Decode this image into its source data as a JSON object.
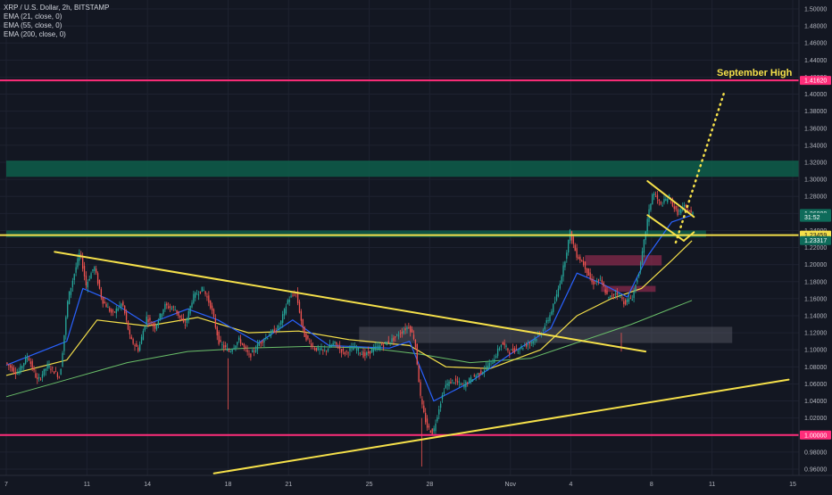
{
  "window": {
    "symbol": "XRP / U.S. Dollar, 2h, BITSTAMP"
  },
  "indicators": [
    {
      "label": "EMA (21, close, 0)",
      "color": "#2962ff"
    },
    {
      "label": "EMA (55, close, 0)",
      "color": "#f5e04a"
    },
    {
      "label": "EMA (200, close, 0)",
      "color": "#6abf69"
    }
  ],
  "annotations": {
    "september_high": "September High"
  },
  "colors": {
    "background": "#131722",
    "pink_line": "#ff2d7a",
    "trend_line": "#f5e04a",
    "green_zone": "#0e5e4a",
    "up_candle": "#26a69a",
    "down_candle": "#ef5350",
    "gray_zone": "#5d606b",
    "red_zone": "#b0305a"
  },
  "chart_data": {
    "type": "candlestick",
    "ylim": [
      0.955,
      1.505
    ],
    "y_ticks": [
      "1.50000",
      "1.48000",
      "1.46000",
      "1.44000",
      "1.42000",
      "1.40000",
      "1.38000",
      "1.36000",
      "1.34000",
      "1.32000",
      "1.30000",
      "1.28000",
      "1.26000",
      "1.24000",
      "1.22000",
      "1.20000",
      "1.18000",
      "1.16000",
      "1.14000",
      "1.12000",
      "1.10000",
      "1.08000",
      "1.06000",
      "1.04000",
      "1.02000",
      "1.00000",
      "0.98000",
      "0.96000"
    ],
    "x_ticks": [
      "7",
      "11",
      "14",
      "18",
      "21",
      "25",
      "28",
      "Nov",
      "4",
      "8",
      "11",
      "15"
    ],
    "x_tick_days": [
      0,
      4,
      7,
      11,
      14,
      18,
      21,
      25,
      28,
      32,
      35,
      39
    ],
    "xlim_days": [
      0,
      40
    ],
    "last_data_day": 34,
    "price_labels": [
      {
        "value": "1.41620",
        "price": 1.4162,
        "style": "pink"
      },
      {
        "value": "1.26000",
        "price": 1.26,
        "style": "teal"
      },
      {
        "value": "31:52",
        "price": 1.2555,
        "style": "teal"
      },
      {
        "value": "1.23459",
        "price": 1.23459,
        "style": "yellow"
      },
      {
        "value": "1.23317",
        "price": 1.22817,
        "style": "teal"
      },
      {
        "value": "1.00000",
        "price": 1.0,
        "style": "pink"
      }
    ],
    "horizontal_lines": [
      {
        "price": 1.4162,
        "color": "pink"
      },
      {
        "price": 1.0,
        "color": "pink"
      },
      {
        "price": 1.23459,
        "color": "yellow"
      }
    ],
    "zones": [
      {
        "kind": "green",
        "day_from": 0,
        "day_to": 40,
        "price_from": 1.303,
        "price_to": 1.322
      },
      {
        "kind": "green",
        "day_from": 0,
        "day_to": 34.7,
        "price_from": 1.232,
        "price_to": 1.24
      },
      {
        "kind": "gray",
        "day_from": 17.5,
        "day_to": 36,
        "price_from": 1.108,
        "price_to": 1.127
      },
      {
        "kind": "red",
        "day_from": 28.7,
        "day_to": 32.5,
        "price_from": 1.199,
        "price_to": 1.211
      },
      {
        "kind": "red",
        "day_from": 29.5,
        "day_to": 32.2,
        "price_from": 1.168,
        "price_to": 1.175
      }
    ],
    "trend_lines": [
      {
        "from": [
          2.4,
          1.215
        ],
        "to": [
          31.7,
          1.098
        ],
        "dotted": false
      },
      {
        "from": [
          10.3,
          0.955
        ],
        "to": [
          38.8,
          1.065
        ],
        "dotted": false
      },
      {
        "from": [
          31.8,
          1.298
        ],
        "to": [
          34.1,
          1.256
        ],
        "dotted": false
      },
      {
        "from": [
          31.8,
          1.258
        ],
        "to": [
          33.6,
          1.228
        ],
        "dotted": false
      },
      {
        "from": [
          33.6,
          1.228
        ],
        "to": [
          34.1,
          1.238
        ],
        "dotted": false
      },
      {
        "from": [
          33.2,
          1.226
        ],
        "to": [
          35.6,
          1.402
        ],
        "dotted": true
      }
    ],
    "key_points": [
      {
        "day": 0.0,
        "price": 1.085
      },
      {
        "day": 0.6,
        "price": 1.072
      },
      {
        "day": 1.1,
        "price": 1.093
      },
      {
        "day": 1.6,
        "price": 1.063
      },
      {
        "day": 2.1,
        "price": 1.082
      },
      {
        "day": 2.7,
        "price": 1.068
      },
      {
        "day": 3.1,
        "price": 1.16
      },
      {
        "day": 3.4,
        "price": 1.188
      },
      {
        "day": 3.7,
        "price": 1.215
      },
      {
        "day": 4.0,
        "price": 1.176
      },
      {
        "day": 4.4,
        "price": 1.198
      },
      {
        "day": 4.8,
        "price": 1.158
      },
      {
        "day": 5.3,
        "price": 1.142
      },
      {
        "day": 5.8,
        "price": 1.155
      },
      {
        "day": 6.2,
        "price": 1.112
      },
      {
        "day": 6.6,
        "price": 1.1
      },
      {
        "day": 7.0,
        "price": 1.138
      },
      {
        "day": 7.4,
        "price": 1.126
      },
      {
        "day": 7.9,
        "price": 1.152
      },
      {
        "day": 8.4,
        "price": 1.148
      },
      {
        "day": 8.9,
        "price": 1.128
      },
      {
        "day": 9.3,
        "price": 1.162
      },
      {
        "day": 9.8,
        "price": 1.172
      },
      {
        "day": 10.2,
        "price": 1.15
      },
      {
        "day": 10.6,
        "price": 1.108
      },
      {
        "day": 11.1,
        "price": 1.098
      },
      {
        "day": 11.6,
        "price": 1.112
      },
      {
        "day": 12.1,
        "price": 1.092
      },
      {
        "day": 12.6,
        "price": 1.108
      },
      {
        "day": 13.1,
        "price": 1.118
      },
      {
        "day": 13.6,
        "price": 1.128
      },
      {
        "day": 14.0,
        "price": 1.158
      },
      {
        "day": 14.4,
        "price": 1.168
      },
      {
        "day": 14.8,
        "price": 1.118
      },
      {
        "day": 15.3,
        "price": 1.102
      },
      {
        "day": 15.8,
        "price": 1.098
      },
      {
        "day": 16.3,
        "price": 1.108
      },
      {
        "day": 16.8,
        "price": 1.096
      },
      {
        "day": 17.3,
        "price": 1.103
      },
      {
        "day": 17.8,
        "price": 1.093
      },
      {
        "day": 18.2,
        "price": 1.1
      },
      {
        "day": 18.7,
        "price": 1.106
      },
      {
        "day": 19.2,
        "price": 1.112
      },
      {
        "day": 19.6,
        "price": 1.12
      },
      {
        "day": 20.0,
        "price": 1.128
      },
      {
        "day": 20.3,
        "price": 1.112
      },
      {
        "day": 20.6,
        "price": 1.04
      },
      {
        "day": 20.9,
        "price": 1.01
      },
      {
        "day": 21.2,
        "price": 1.002
      },
      {
        "day": 21.5,
        "price": 1.032
      },
      {
        "day": 21.8,
        "price": 1.058
      },
      {
        "day": 22.2,
        "price": 1.064
      },
      {
        "day": 22.7,
        "price": 1.058
      },
      {
        "day": 23.2,
        "price": 1.068
      },
      {
        "day": 23.7,
        "price": 1.076
      },
      {
        "day": 24.2,
        "price": 1.088
      },
      {
        "day": 24.6,
        "price": 1.108
      },
      {
        "day": 25.0,
        "price": 1.098
      },
      {
        "day": 25.5,
        "price": 1.102
      },
      {
        "day": 26.0,
        "price": 1.108
      },
      {
        "day": 26.5,
        "price": 1.118
      },
      {
        "day": 26.9,
        "price": 1.135
      },
      {
        "day": 27.3,
        "price": 1.16
      },
      {
        "day": 27.7,
        "price": 1.2
      },
      {
        "day": 28.0,
        "price": 1.238
      },
      {
        "day": 28.3,
        "price": 1.212
      },
      {
        "day": 28.7,
        "price": 1.2
      },
      {
        "day": 29.1,
        "price": 1.178
      },
      {
        "day": 29.5,
        "price": 1.182
      },
      {
        "day": 29.9,
        "price": 1.16
      },
      {
        "day": 30.3,
        "price": 1.168
      },
      {
        "day": 30.7,
        "price": 1.155
      },
      {
        "day": 31.1,
        "price": 1.162
      },
      {
        "day": 31.5,
        "price": 1.2
      },
      {
        "day": 31.8,
        "price": 1.248
      },
      {
        "day": 32.1,
        "price": 1.285
      },
      {
        "day": 32.5,
        "price": 1.27
      },
      {
        "day": 32.9,
        "price": 1.28
      },
      {
        "day": 33.3,
        "price": 1.26
      },
      {
        "day": 33.7,
        "price": 1.268
      },
      {
        "day": 34.0,
        "price": 1.26
      }
    ],
    "ema_21": [
      {
        "day": 0,
        "price": 1.082
      },
      {
        "day": 3,
        "price": 1.11
      },
      {
        "day": 3.8,
        "price": 1.172
      },
      {
        "day": 5,
        "price": 1.16
      },
      {
        "day": 7,
        "price": 1.13
      },
      {
        "day": 9,
        "price": 1.148
      },
      {
        "day": 10.5,
        "price": 1.135
      },
      {
        "day": 12.5,
        "price": 1.108
      },
      {
        "day": 14.2,
        "price": 1.135
      },
      {
        "day": 16,
        "price": 1.105
      },
      {
        "day": 19,
        "price": 1.102
      },
      {
        "day": 20,
        "price": 1.11
      },
      {
        "day": 21.2,
        "price": 1.04
      },
      {
        "day": 23,
        "price": 1.062
      },
      {
        "day": 25,
        "price": 1.095
      },
      {
        "day": 27,
        "price": 1.125
      },
      {
        "day": 28.3,
        "price": 1.19
      },
      {
        "day": 29.5,
        "price": 1.178
      },
      {
        "day": 30.8,
        "price": 1.162
      },
      {
        "day": 31.8,
        "price": 1.21
      },
      {
        "day": 33,
        "price": 1.25
      },
      {
        "day": 34,
        "price": 1.258
      }
    ],
    "ema_55": [
      {
        "day": 0,
        "price": 1.07
      },
      {
        "day": 3,
        "price": 1.088
      },
      {
        "day": 4.5,
        "price": 1.135
      },
      {
        "day": 7,
        "price": 1.128
      },
      {
        "day": 9.5,
        "price": 1.138
      },
      {
        "day": 12,
        "price": 1.12
      },
      {
        "day": 14.5,
        "price": 1.122
      },
      {
        "day": 17,
        "price": 1.112
      },
      {
        "day": 20,
        "price": 1.105
      },
      {
        "day": 21.8,
        "price": 1.08
      },
      {
        "day": 24,
        "price": 1.078
      },
      {
        "day": 26.5,
        "price": 1.1
      },
      {
        "day": 28.3,
        "price": 1.14
      },
      {
        "day": 30,
        "price": 1.16
      },
      {
        "day": 31.5,
        "price": 1.172
      },
      {
        "day": 33,
        "price": 1.205
      },
      {
        "day": 34,
        "price": 1.228
      }
    ],
    "ema_200": [
      {
        "day": 0,
        "price": 1.045
      },
      {
        "day": 3,
        "price": 1.065
      },
      {
        "day": 6,
        "price": 1.085
      },
      {
        "day": 9,
        "price": 1.098
      },
      {
        "day": 12,
        "price": 1.102
      },
      {
        "day": 15,
        "price": 1.104
      },
      {
        "day": 18,
        "price": 1.102
      },
      {
        "day": 20.5,
        "price": 1.095
      },
      {
        "day": 23,
        "price": 1.085
      },
      {
        "day": 26,
        "price": 1.09
      },
      {
        "day": 28.5,
        "price": 1.11
      },
      {
        "day": 31,
        "price": 1.13
      },
      {
        "day": 34,
        "price": 1.158
      }
    ]
  }
}
